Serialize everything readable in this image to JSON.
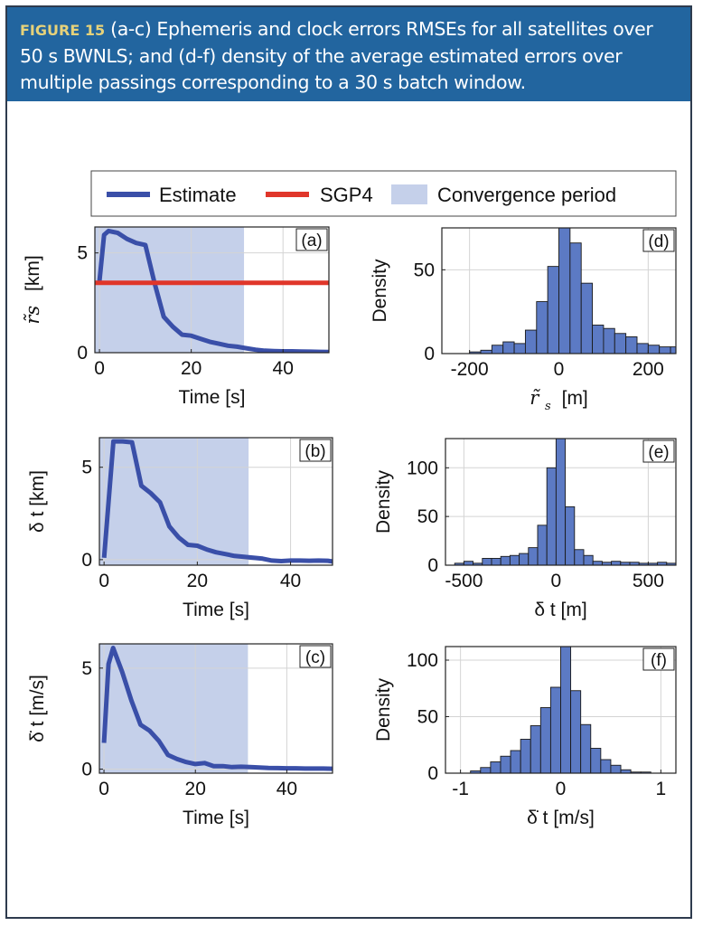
{
  "caption": {
    "label": "FIGURE 15",
    "text": "(a-c) Ephemeris and clock errors RMSEs for all satellites over 50 s BWNLS; and (d-f) density of the average estimated errors over multiple passings corresponding to a 30 s batch window."
  },
  "colors": {
    "estimate": "#3a4fa8",
    "sgp4": "#e0362a",
    "convergence": "#c5d0ea",
    "bars": "#5c7ac4"
  },
  "legend": {
    "estimate": "Estimate",
    "sgp4": "SGP4",
    "convergence": "Convergence period"
  },
  "chart_data": [
    {
      "id": "a",
      "type": "line",
      "panel_label": "(a)",
      "xlabel": "Time [s]",
      "ylabel": "[km]",
      "ylabel_symbol": "r̃",
      "xlim": [
        -1,
        50
      ],
      "ylim": [
        0,
        6.3
      ],
      "xticks": [
        0,
        20,
        40
      ],
      "yticks": [
        0,
        5
      ],
      "convergence_end": 31.5,
      "series": [
        {
          "name": "Estimate",
          "x": [
            0,
            1,
            2,
            4,
            6,
            8,
            10,
            12,
            14,
            16,
            18,
            20,
            22,
            24,
            26,
            28,
            30,
            32,
            34,
            36,
            38,
            40,
            42,
            44,
            46,
            48,
            50
          ],
          "y": [
            3.6,
            5.9,
            6.1,
            6.0,
            5.7,
            5.5,
            5.4,
            3.5,
            1.8,
            1.3,
            0.9,
            0.85,
            0.7,
            0.55,
            0.45,
            0.35,
            0.3,
            0.22,
            0.15,
            0.1,
            0.08,
            0.07,
            0.07,
            0.06,
            0.05,
            0.04,
            0.03
          ]
        },
        {
          "name": "SGP4",
          "x": [
            -1,
            50
          ],
          "y": [
            3.5,
            3.5
          ]
        }
      ]
    },
    {
      "id": "b",
      "type": "line",
      "panel_label": "(b)",
      "xlabel": "Time [s]",
      "ylabel": "δ t [km]",
      "xlim": [
        -1,
        49
      ],
      "ylim": [
        -0.3,
        6.6
      ],
      "xticks": [
        0,
        20,
        40
      ],
      "yticks": [
        0,
        5
      ],
      "convergence_end": 31,
      "series": [
        {
          "name": "Estimate",
          "x": [
            0,
            2,
            4,
            6,
            8,
            10,
            12,
            14,
            16,
            18,
            20,
            22,
            24,
            26,
            28,
            30,
            32,
            34,
            36,
            38,
            40,
            42,
            44,
            46,
            48,
            49
          ],
          "y": [
            0.1,
            6.4,
            6.4,
            6.35,
            4.0,
            3.6,
            3.1,
            1.8,
            1.2,
            0.8,
            0.75,
            0.55,
            0.4,
            0.3,
            0.2,
            0.15,
            0.1,
            0.05,
            -0.05,
            -0.08,
            -0.05,
            -0.05,
            -0.06,
            -0.05,
            -0.06,
            -0.1
          ]
        }
      ]
    },
    {
      "id": "c",
      "type": "line",
      "panel_label": "(c)",
      "xlabel": "Time [s]",
      "ylabel": "δ̇ t [m/s]",
      "xlim": [
        -1,
        50
      ],
      "ylim": [
        -0.2,
        6.2
      ],
      "xticks": [
        0,
        20,
        40
      ],
      "yticks": [
        0,
        5
      ],
      "convergence_end": 31.5,
      "series": [
        {
          "name": "Estimate",
          "x": [
            0,
            1,
            2,
            4,
            6,
            8,
            10,
            12,
            14,
            16,
            18,
            20,
            22,
            24,
            26,
            28,
            30,
            32,
            34,
            36,
            38,
            40,
            42,
            44,
            46,
            48,
            50
          ],
          "y": [
            1.3,
            5.2,
            6.0,
            4.8,
            3.4,
            2.2,
            1.9,
            1.4,
            0.7,
            0.5,
            0.35,
            0.25,
            0.3,
            0.15,
            0.15,
            0.1,
            0.12,
            0.1,
            0.08,
            0.06,
            0.05,
            0.04,
            0.04,
            0.03,
            0.03,
            0.03,
            0.02
          ]
        }
      ]
    },
    {
      "id": "d",
      "type": "bar",
      "panel_label": "(d)",
      "xlabel": "[m]",
      "xlabel_symbol": "r̃",
      "ylabel": "Density",
      "xlim": [
        -262,
        262
      ],
      "ylim": [
        0,
        75
      ],
      "xticks": [
        -200,
        0,
        200
      ],
      "yticks": [
        0,
        50
      ],
      "bin_edges": [
        -200,
        -175,
        -150,
        -125,
        -100,
        -75,
        -50,
        -25,
        0,
        25,
        50,
        75,
        100,
        125,
        150,
        175,
        200,
        225,
        250,
        275
      ],
      "values": [
        1,
        2,
        5,
        7,
        6,
        14,
        31,
        52,
        75,
        66,
        42,
        17,
        15,
        12,
        10,
        6,
        5,
        4,
        4
      ]
    },
    {
      "id": "e",
      "type": "bar",
      "panel_label": "(e)",
      "xlabel": "δ t [m]",
      "ylabel": "Density",
      "xlim": [
        -600,
        650
      ],
      "ylim": [
        0,
        130
      ],
      "xticks": [
        -500,
        0,
        500
      ],
      "yticks": [
        0,
        50,
        100
      ],
      "bin_edges": [
        -550,
        -500,
        -450,
        -400,
        -350,
        -300,
        -250,
        -200,
        -150,
        -100,
        -50,
        0,
        50,
        100,
        150,
        200,
        250,
        300,
        350,
        400,
        450,
        500,
        550,
        600,
        650
      ],
      "values": [
        2,
        4,
        2,
        7,
        7,
        9,
        10,
        12,
        18,
        41,
        100,
        130,
        60,
        16,
        10,
        4,
        3,
        4,
        3,
        3,
        2,
        2,
        3,
        2
      ]
    },
    {
      "id": "f",
      "type": "bar",
      "panel_label": "(f)",
      "xlabel": "δ̇ t [m/s]",
      "ylabel": "Density",
      "xlim": [
        -1.15,
        1.15
      ],
      "ylim": [
        0,
        112
      ],
      "xticks": [
        -1,
        0,
        1
      ],
      "yticks": [
        0,
        50,
        100
      ],
      "bin_edges": [
        -0.9,
        -0.8,
        -0.7,
        -0.6,
        -0.5,
        -0.4,
        -0.3,
        -0.2,
        -0.1,
        0,
        0.1,
        0.2,
        0.3,
        0.4,
        0.5,
        0.6,
        0.7,
        0.8,
        0.9
      ],
      "values": [
        2,
        5,
        10,
        15,
        20,
        30,
        42,
        58,
        76,
        112,
        73,
        43,
        22,
        12,
        7,
        3,
        1,
        1
      ]
    }
  ]
}
